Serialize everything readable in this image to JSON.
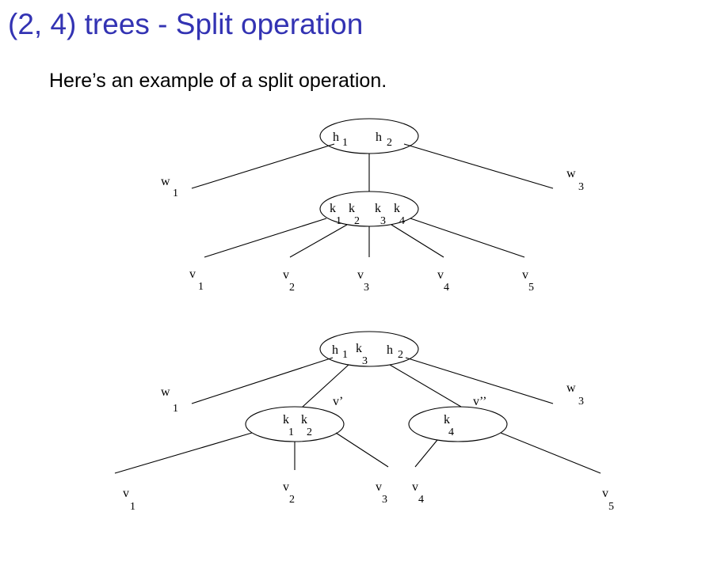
{
  "slide": {
    "title": "(2, 4) trees - Split operation",
    "subtitle": "Here’s an example of a split operation."
  },
  "before": {
    "root_keys": [
      [
        "h",
        "1"
      ],
      [
        "h",
        "2"
      ]
    ],
    "child_keys": [
      [
        "k",
        "1"
      ],
      [
        "k",
        "2"
      ],
      [
        "k",
        "3"
      ],
      [
        "k",
        "4"
      ]
    ],
    "side_leaves": [
      [
        "w",
        "1"
      ],
      [
        "w",
        "3"
      ]
    ],
    "leaves": [
      [
        "v",
        "1"
      ],
      [
        "v",
        "2"
      ],
      [
        "v",
        "3"
      ],
      [
        "v",
        "4"
      ],
      [
        "v",
        "5"
      ]
    ]
  },
  "after": {
    "root_keys": [
      [
        "h",
        "1"
      ],
      [
        "k",
        "3"
      ],
      [
        "h",
        "2"
      ]
    ],
    "left_keys": [
      [
        "k",
        "1"
      ],
      [
        "k",
        "2"
      ]
    ],
    "right_keys": [
      [
        "k",
        "4"
      ]
    ],
    "node_labels": [
      "v’",
      "v’’"
    ],
    "side_leaves": [
      [
        "w",
        "1"
      ],
      [
        "w",
        "3"
      ]
    ],
    "leaves": [
      [
        "v",
        "1"
      ],
      [
        "v",
        "2"
      ],
      [
        "v",
        "3"
      ],
      [
        "v",
        "4"
      ],
      [
        "v",
        "5"
      ]
    ]
  }
}
